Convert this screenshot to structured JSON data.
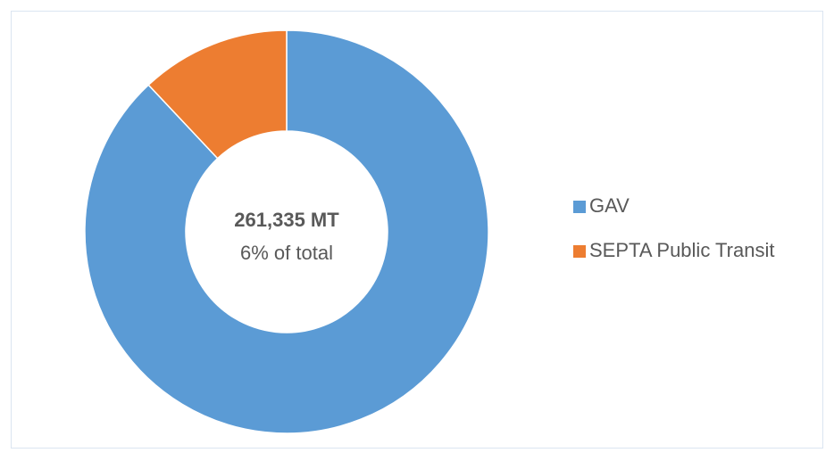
{
  "chart_data": {
    "type": "donut",
    "categories": [
      "GAV",
      "SEPTA Public Transit"
    ],
    "values": [
      88,
      12
    ],
    "colors": [
      "#5b9bd5",
      "#ed7d31"
    ],
    "annotations": [
      "261,335 MT",
      "6% of total"
    ],
    "legend": "right"
  }
}
